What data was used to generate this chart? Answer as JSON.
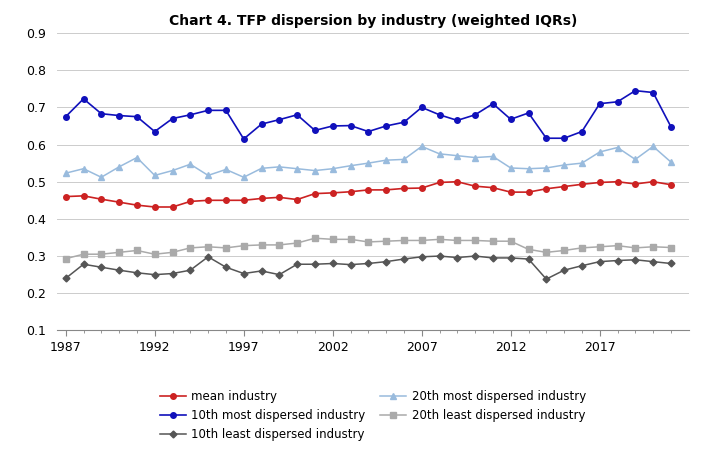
{
  "title": "Chart 4. TFP dispersion by industry (weighted IQRs)",
  "years": [
    1987,
    1988,
    1989,
    1990,
    1991,
    1992,
    1993,
    1994,
    1995,
    1996,
    1997,
    1998,
    1999,
    2000,
    2001,
    2002,
    2003,
    2004,
    2005,
    2006,
    2007,
    2008,
    2009,
    2010,
    2011,
    2012,
    2013,
    2014,
    2015,
    2016,
    2017,
    2018,
    2019,
    2020,
    2021
  ],
  "mean_industry": [
    0.46,
    0.462,
    0.453,
    0.445,
    0.437,
    0.432,
    0.432,
    0.447,
    0.45,
    0.45,
    0.45,
    0.455,
    0.458,
    0.452,
    0.468,
    0.47,
    0.473,
    0.478,
    0.478,
    0.482,
    0.483,
    0.498,
    0.5,
    0.488,
    0.484,
    0.472,
    0.472,
    0.481,
    0.487,
    0.493,
    0.498,
    0.5,
    0.494,
    0.5,
    0.492
  ],
  "10th_most": [
    0.675,
    0.723,
    0.683,
    0.678,
    0.675,
    0.635,
    0.67,
    0.68,
    0.692,
    0.692,
    0.615,
    0.655,
    0.667,
    0.68,
    0.638,
    0.65,
    0.651,
    0.635,
    0.65,
    0.66,
    0.7,
    0.68,
    0.665,
    0.68,
    0.71,
    0.668,
    0.685,
    0.617,
    0.617,
    0.635,
    0.71,
    0.715,
    0.745,
    0.74,
    0.648
  ],
  "10th_least": [
    0.24,
    0.278,
    0.27,
    0.262,
    0.255,
    0.25,
    0.253,
    0.262,
    0.298,
    0.27,
    0.253,
    0.26,
    0.25,
    0.278,
    0.278,
    0.28,
    0.277,
    0.28,
    0.285,
    0.292,
    0.298,
    0.3,
    0.296,
    0.3,
    0.295,
    0.295,
    0.292,
    0.238,
    0.262,
    0.274,
    0.285,
    0.288,
    0.29,
    0.285,
    0.28
  ],
  "20th_most": [
    0.523,
    0.535,
    0.512,
    0.54,
    0.565,
    0.517,
    0.53,
    0.547,
    0.517,
    0.533,
    0.512,
    0.536,
    0.54,
    0.535,
    0.53,
    0.535,
    0.543,
    0.55,
    0.558,
    0.56,
    0.595,
    0.575,
    0.57,
    0.565,
    0.568,
    0.537,
    0.535,
    0.537,
    0.545,
    0.55,
    0.58,
    0.592,
    0.56,
    0.595,
    0.553
  ],
  "20th_least": [
    0.293,
    0.305,
    0.305,
    0.31,
    0.315,
    0.305,
    0.31,
    0.322,
    0.325,
    0.322,
    0.328,
    0.33,
    0.33,
    0.335,
    0.348,
    0.345,
    0.345,
    0.338,
    0.34,
    0.342,
    0.342,
    0.345,
    0.342,
    0.342,
    0.34,
    0.34,
    0.318,
    0.31,
    0.315,
    0.322,
    0.325,
    0.328,
    0.322,
    0.325,
    0.323
  ],
  "colors": {
    "mean_industry": "#cc2222",
    "10th_most": "#1010bb",
    "10th_least": "#555555",
    "20th_most": "#99bbdd",
    "20th_least": "#aaaaaa"
  },
  "ylim": [
    0.1,
    0.9
  ],
  "yticks": [
    0.1,
    0.2,
    0.3,
    0.4,
    0.5,
    0.6,
    0.7,
    0.8,
    0.9
  ],
  "xticks_major": [
    1987,
    1992,
    1997,
    2002,
    2007,
    2012,
    2017
  ],
  "xlim": [
    1986.5,
    2022.0
  ],
  "legend_labels": [
    "mean industry",
    "10th most dispersed industry",
    "10th least dispersed industry",
    "20th most dispersed industry",
    "20th least dispersed industry"
  ]
}
